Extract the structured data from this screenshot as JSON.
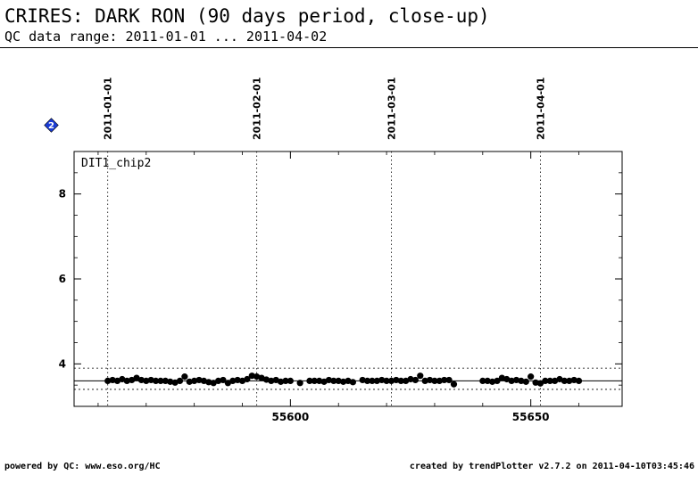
{
  "header": {
    "title": "CRIRES: DARK RON (90 days period, close-up)",
    "subtitle": "QC data range: 2011-01-01 ... 2011-04-02"
  },
  "footer": {
    "left": "powered by QC: www.eso.org/HC",
    "right": "created by trendPlotter v2.7.2 on 2011-04-10T03:45:46"
  },
  "badge": {
    "label": "2",
    "color": "#1a3cd6"
  },
  "chart_data": {
    "type": "scatter",
    "panel_label": "DIT1_chip2",
    "xlim": [
      55555,
      55669
    ],
    "ylim": [
      3,
      9
    ],
    "x_ticks": [
      55600,
      55650
    ],
    "y_ticks": [
      4,
      6,
      8
    ],
    "grid": false,
    "date_markers": [
      {
        "mjd": 55562,
        "label": "2011-01-01"
      },
      {
        "mjd": 55593,
        "label": "2011-02-01"
      },
      {
        "mjd": 55621,
        "label": "2011-03-01"
      },
      {
        "mjd": 55652,
        "label": "2011-04-01"
      }
    ],
    "reference_line": 3.6,
    "limit_lines": [
      3.4,
      3.9
    ],
    "marker_color": "#000000",
    "points": [
      [
        55562,
        3.6
      ],
      [
        55563,
        3.62
      ],
      [
        55564,
        3.6
      ],
      [
        55565,
        3.64
      ],
      [
        55566,
        3.6
      ],
      [
        55567,
        3.62
      ],
      [
        55568,
        3.67
      ],
      [
        55569,
        3.62
      ],
      [
        55570,
        3.6
      ],
      [
        55571,
        3.62
      ],
      [
        55572,
        3.6
      ],
      [
        55573,
        3.6
      ],
      [
        55574,
        3.6
      ],
      [
        55575,
        3.58
      ],
      [
        55576,
        3.56
      ],
      [
        55577,
        3.6
      ],
      [
        55578,
        3.7
      ],
      [
        55579,
        3.58
      ],
      [
        55580,
        3.6
      ],
      [
        55581,
        3.62
      ],
      [
        55582,
        3.6
      ],
      [
        55583,
        3.57
      ],
      [
        55584,
        3.55
      ],
      [
        55585,
        3.6
      ],
      [
        55586,
        3.62
      ],
      [
        55587,
        3.55
      ],
      [
        55588,
        3.6
      ],
      [
        55589,
        3.62
      ],
      [
        55590,
        3.6
      ],
      [
        55591,
        3.64
      ],
      [
        55592,
        3.72
      ],
      [
        55593,
        3.7
      ],
      [
        55594,
        3.67
      ],
      [
        55595,
        3.63
      ],
      [
        55596,
        3.6
      ],
      [
        55597,
        3.62
      ],
      [
        55598,
        3.58
      ],
      [
        55599,
        3.6
      ],
      [
        55600,
        3.6
      ],
      [
        55602,
        3.55
      ],
      [
        55604,
        3.6
      ],
      [
        55605,
        3.6
      ],
      [
        55606,
        3.6
      ],
      [
        55607,
        3.58
      ],
      [
        55608,
        3.62
      ],
      [
        55609,
        3.6
      ],
      [
        55610,
        3.6
      ],
      [
        55611,
        3.58
      ],
      [
        55612,
        3.6
      ],
      [
        55613,
        3.57
      ],
      [
        55615,
        3.62
      ],
      [
        55616,
        3.6
      ],
      [
        55617,
        3.6
      ],
      [
        55618,
        3.6
      ],
      [
        55619,
        3.62
      ],
      [
        55620,
        3.6
      ],
      [
        55621,
        3.6
      ],
      [
        55622,
        3.62
      ],
      [
        55623,
        3.6
      ],
      [
        55624,
        3.6
      ],
      [
        55625,
        3.64
      ],
      [
        55626,
        3.62
      ],
      [
        55627,
        3.72
      ],
      [
        55628,
        3.6
      ],
      [
        55629,
        3.62
      ],
      [
        55630,
        3.6
      ],
      [
        55631,
        3.6
      ],
      [
        55632,
        3.62
      ],
      [
        55633,
        3.62
      ],
      [
        55634,
        3.52
      ],
      [
        55640,
        3.6
      ],
      [
        55641,
        3.6
      ],
      [
        55642,
        3.58
      ],
      [
        55643,
        3.6
      ],
      [
        55644,
        3.67
      ],
      [
        55645,
        3.64
      ],
      [
        55646,
        3.6
      ],
      [
        55647,
        3.62
      ],
      [
        55648,
        3.6
      ],
      [
        55649,
        3.58
      ],
      [
        55650,
        3.7
      ],
      [
        55651,
        3.56
      ],
      [
        55652,
        3.54
      ],
      [
        55653,
        3.6
      ],
      [
        55654,
        3.6
      ],
      [
        55655,
        3.6
      ],
      [
        55656,
        3.64
      ],
      [
        55657,
        3.6
      ],
      [
        55658,
        3.6
      ],
      [
        55659,
        3.62
      ],
      [
        55660,
        3.6
      ]
    ]
  }
}
